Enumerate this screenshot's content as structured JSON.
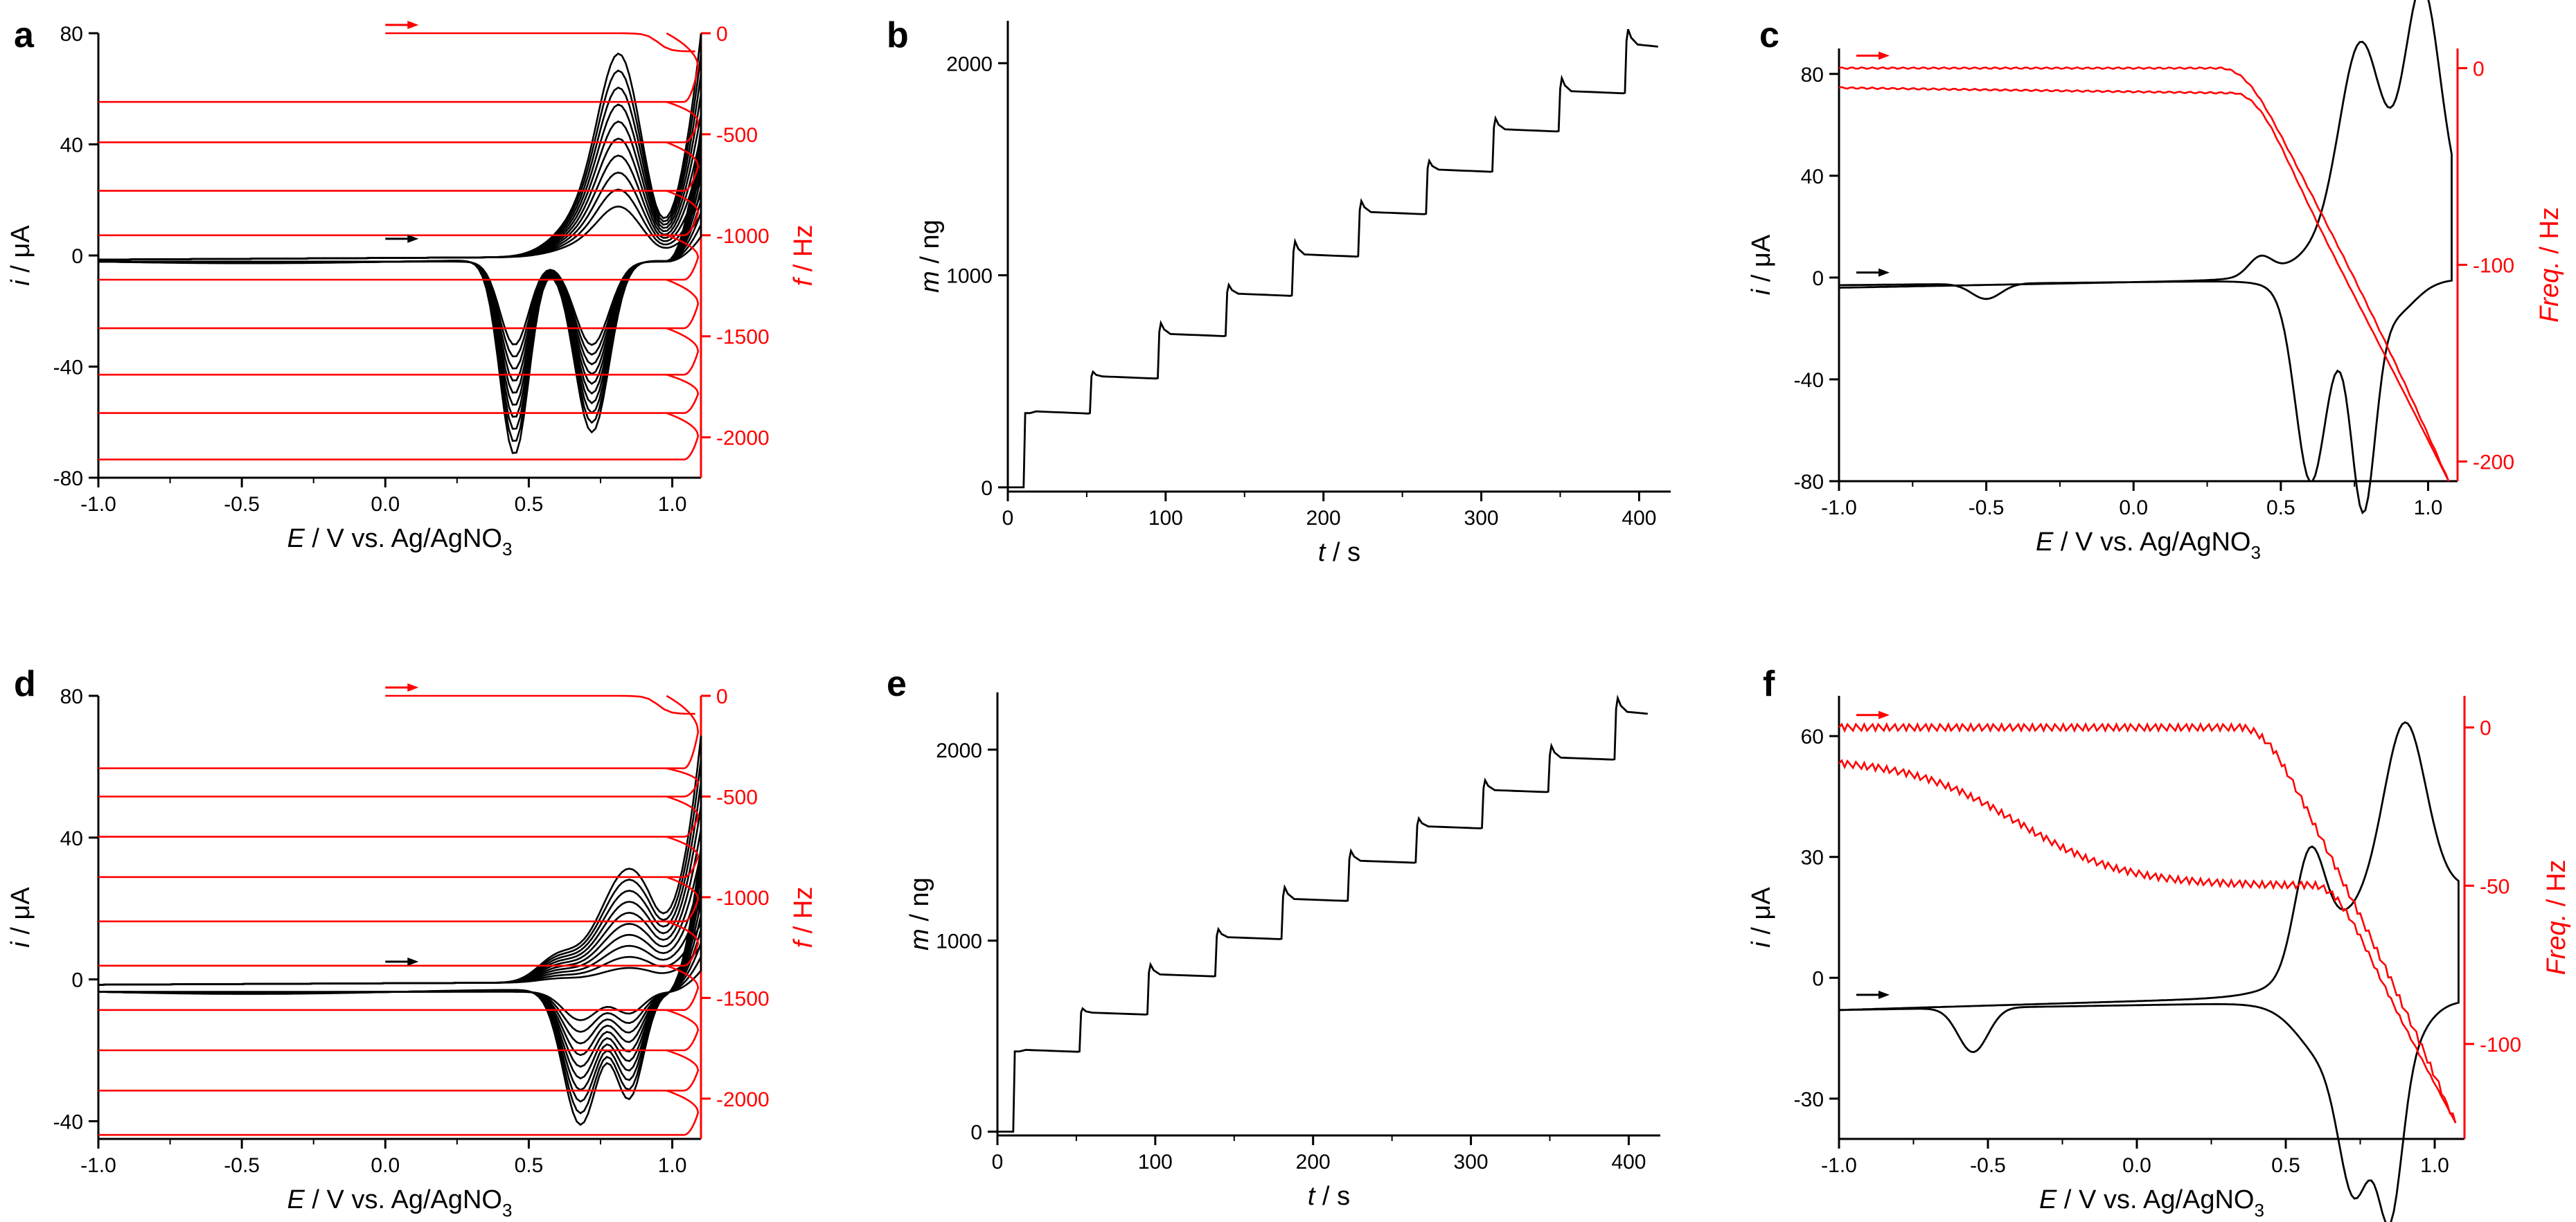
{
  "colors": {
    "primary": "#000000",
    "secondary": "#ff0000"
  },
  "chart_data": [
    {
      "id": "a",
      "letter": "a",
      "type": "line",
      "kind": "cv",
      "x": {
        "min": -1.0,
        "max": 1.1,
        "ticks": [
          -1.0,
          -0.5,
          0.0,
          0.5,
          1.0
        ],
        "labels": [
          "-1.0",
          "-0.5",
          "0.0",
          "0.5",
          "1.0"
        ],
        "title": {
          "italic": "E",
          "rest": " / V vs. Ag/AgNO",
          "sub": "3"
        }
      },
      "y": {
        "min": -80,
        "max": 80,
        "ticks": [
          -80,
          -40,
          0,
          40,
          80
        ],
        "labels": [
          "-80",
          "-40",
          "0",
          "40",
          "80"
        ],
        "title": {
          "italic": "i",
          "rest": " / μA"
        }
      },
      "y2": {
        "min": -2200,
        "max": 0,
        "ticks": [
          0,
          -500,
          -1000,
          -1500,
          -2000
        ],
        "labels": [
          "0",
          "-500",
          "-1000",
          "-1500",
          "-2000"
        ],
        "title": {
          "italic": "f",
          "rest": " / Hz"
        }
      },
      "cv": {
        "cycles": 10,
        "onset": 0.32,
        "lowBase": -2.2,
        "highBase": 3.0,
        "anodicPeaks": [
          [
            0.82,
            16,
            66,
            0.075
          ],
          [
            0.7,
            4,
            14,
            0.1
          ]
        ],
        "cathodicPeaks": [
          [
            0.45,
            -30,
            -70,
            0.05
          ],
          [
            0.72,
            -30,
            -62,
            0.06
          ]
        ],
        "endCurrent": [
          15,
          80
        ]
      },
      "freq": {
        "start": 0,
        "levels": [
          -340,
          -540,
          -780,
          -1000,
          -1220,
          -1460,
          -1690,
          -1880,
          -2110
        ],
        "plateauOnset": 0.95
      }
    },
    {
      "id": "b",
      "letter": "b",
      "type": "line",
      "kind": "mass",
      "x": {
        "min": 0,
        "max": 420,
        "ticks": [
          0,
          100,
          200,
          300,
          400
        ],
        "labels": [
          "0",
          "100",
          "200",
          "300",
          "400"
        ],
        "title": {
          "italic": "t",
          "rest": " / s"
        }
      },
      "y": {
        "min": -20,
        "max": 2200,
        "ticks": [
          0,
          1000,
          2000
        ],
        "labels": [
          "0",
          "1000",
          "2000"
        ],
        "title": {
          "italic": "m",
          "rest": " / ng"
        }
      },
      "mass": {
        "stepTimes": [
          10,
          52,
          95,
          138,
          180,
          222,
          265,
          307,
          349,
          391
        ],
        "levels": [
          0,
          350,
          515,
          715,
          905,
          1090,
          1290,
          1490,
          1680,
          1860,
          2080
        ],
        "overshoots": [
          0,
          30,
          60,
          50,
          70,
          60,
          50,
          60,
          70,
          80
        ]
      }
    },
    {
      "id": "c",
      "letter": "c",
      "type": "line",
      "kind": "cv-single",
      "x": {
        "min": -1.0,
        "max": 1.1,
        "ticks": [
          -1.0,
          -0.5,
          0.0,
          0.5,
          1.0
        ],
        "labels": [
          "-1.0",
          "-0.5",
          "0.0",
          "0.5",
          "1.0"
        ],
        "title": {
          "italic": "E",
          "rest": " / V vs. Ag/AgNO",
          "sub": "3"
        }
      },
      "y": {
        "min": -80,
        "max": 90,
        "ticks": [
          -80,
          -40,
          0,
          40,
          80
        ],
        "labels": [
          "-80",
          "-40",
          "0",
          "40",
          "80"
        ],
        "title": {
          "italic": "i",
          "rest": " / μA"
        }
      },
      "y2": {
        "min": -210,
        "max": 10,
        "ticks": [
          0,
          -100,
          -200
        ],
        "labels": [
          "0",
          "-100",
          "-200"
        ],
        "title": {
          "italic": "Freq.",
          "rest": " / Hz"
        }
      },
      "cvs": {
        "forwardStart": -4,
        "forwardPeaks": [
          [
            0.43,
            10,
            8,
            0.04
          ],
          [
            0.77,
            22,
            70,
            0.07
          ],
          [
            0.98,
            22,
            88,
            0.06
          ]
        ],
        "reverseStart": -3,
        "reversePeaks": [
          [
            -0.5,
            -4,
            -6,
            0.05
          ],
          [
            0.6,
            -10,
            -66,
            0.05
          ],
          [
            0.78,
            -20,
            -74,
            0.04
          ]
        ]
      },
      "fr": {
        "forwardLevel": 0,
        "forwardDropStart": 0.3,
        "forwardEnd": -210,
        "returnLevel": -10,
        "returnDropStart": 0.35
      }
    },
    {
      "id": "d",
      "letter": "d",
      "type": "line",
      "kind": "cv",
      "x": {
        "min": -1.0,
        "max": 1.1,
        "ticks": [
          -1.0,
          -0.5,
          0.0,
          0.5,
          1.0
        ],
        "labels": [
          "-1.0",
          "-0.5",
          "0.0",
          "0.5",
          "1.0"
        ],
        "title": {
          "italic": "E",
          "rest": " / V vs. Ag/AgNO",
          "sub": "3"
        }
      },
      "y": {
        "min": -45,
        "max": 80,
        "ticks": [
          -40,
          0,
          40,
          80
        ],
        "labels": [
          "-40",
          "0",
          "40",
          "80"
        ],
        "title": {
          "italic": "i",
          "rest": " / μA"
        }
      },
      "y2": {
        "min": -2200,
        "max": 0,
        "ticks": [
          0,
          -500,
          -1000,
          -1500,
          -2000
        ],
        "labels": [
          "0",
          "-500",
          "-1000",
          "-1500",
          "-2000"
        ],
        "title": {
          "italic": "f",
          "rest": " / Hz"
        }
      },
      "cv": {
        "cycles": 10,
        "onset": 0.4,
        "lowBase": -3.5,
        "highBase": 2.0,
        "anodicPeaks": [
          [
            0.85,
            4,
            32,
            0.1
          ],
          [
            0.6,
            1,
            7,
            0.07
          ]
        ],
        "cathodicPeaks": [
          [
            0.68,
            -8,
            -38,
            0.06
          ],
          [
            0.85,
            -6,
            -30,
            0.05
          ]
        ],
        "endCurrent": [
          10,
          68
        ]
      },
      "freq": {
        "start": 0,
        "levels": [
          -360,
          -500,
          -700,
          -900,
          -1120,
          -1340,
          -1560,
          -1760,
          -1960,
          -2180
        ],
        "plateauOnset": 0.95
      }
    },
    {
      "id": "e",
      "letter": "e",
      "type": "line",
      "kind": "mass",
      "x": {
        "min": 0,
        "max": 420,
        "ticks": [
          0,
          100,
          200,
          300,
          400
        ],
        "labels": [
          "0",
          "100",
          "200",
          "300",
          "400"
        ],
        "title": {
          "italic": "t",
          "rest": " / s"
        }
      },
      "y": {
        "min": -20,
        "max": 2300,
        "ticks": [
          0,
          1000,
          2000
        ],
        "labels": [
          "0",
          "1000",
          "2000"
        ],
        "title": {
          "italic": "m",
          "rest": " / ng"
        }
      },
      "mass": {
        "stepTimes": [
          10,
          52,
          95,
          138,
          180,
          222,
          265,
          307,
          349,
          391
        ],
        "levels": [
          0,
          420,
          615,
          815,
          1010,
          1210,
          1410,
          1590,
          1780,
          1950,
          2190
        ],
        "overshoots": [
          0,
          30,
          60,
          50,
          70,
          60,
          50,
          60,
          70,
          80
        ]
      }
    },
    {
      "id": "f",
      "letter": "f",
      "type": "line",
      "kind": "cv-single",
      "x": {
        "min": -1.0,
        "max": 1.1,
        "ticks": [
          -1.0,
          -0.5,
          0.0,
          0.5,
          1.0
        ],
        "labels": [
          "-1.0",
          "-0.5",
          "0.0",
          "0.5",
          "1.0"
        ],
        "title": {
          "italic": "E",
          "rest": " / V vs. Ag/AgNO",
          "sub": "3"
        }
      },
      "y": {
        "min": -40,
        "max": 70,
        "ticks": [
          -30,
          0,
          30,
          60
        ],
        "labels": [
          "-30",
          "0",
          "30",
          "60"
        ],
        "title": {
          "italic": "i",
          "rest": " / μA"
        }
      },
      "y2": {
        "min": -130,
        "max": 10,
        "ticks": [
          0,
          -50,
          -100
        ],
        "labels": [
          "0",
          "-50",
          "-100"
        ],
        "title": {
          "italic": "Freq.",
          "rest": " / Hz"
        }
      },
      "cvs": {
        "forwardStart": -8,
        "forwardPeaks": [
          [
            0.58,
            20,
            27,
            0.05
          ],
          [
            0.9,
            25,
            42,
            0.07
          ]
        ],
        "reverseStart": -8,
        "reversePeaks": [
          [
            -0.55,
            -2,
            -11,
            0.05
          ],
          [
            0.73,
            -12,
            -31,
            0.05
          ],
          [
            0.85,
            -20,
            -37,
            0.04
          ]
        ]
      },
      "fr": {
        "forwardLevel": 0,
        "forwardDropStart": 0.35,
        "forwardEnd": -125,
        "returnLevel": -50,
        "returnDropStart": 0.6
      }
    }
  ]
}
